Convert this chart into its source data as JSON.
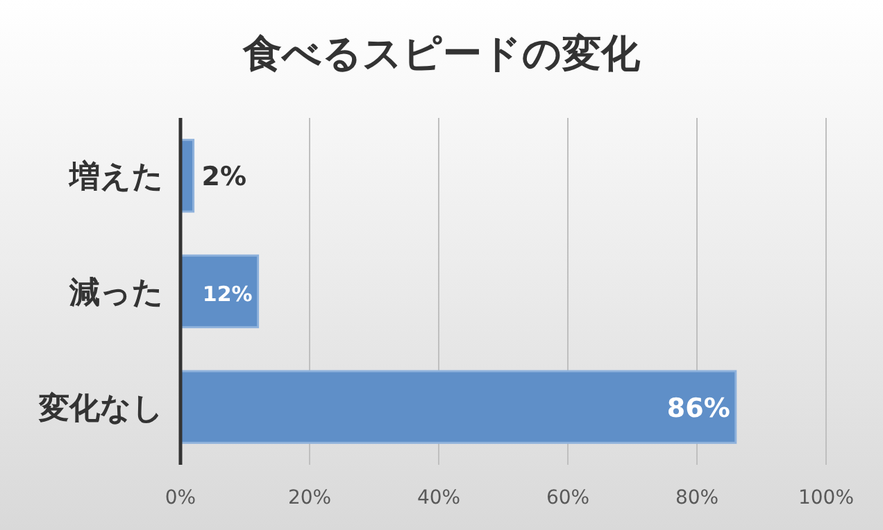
{
  "chart_data": {
    "type": "bar",
    "orientation": "horizontal",
    "title": "食べるスピードの変化",
    "categories": [
      "増えた",
      "減った",
      "変化なし"
    ],
    "values": [
      2,
      12,
      86
    ],
    "value_labels": [
      "2%",
      "12%",
      "86%"
    ],
    "color": "#5f8fc8",
    "xlim": [
      0,
      100
    ],
    "xticks": [
      {
        "value": 0,
        "label": "0%"
      },
      {
        "value": 20,
        "label": "20%"
      },
      {
        "value": 40,
        "label": "40%"
      },
      {
        "value": 60,
        "label": "60%"
      },
      {
        "value": 80,
        "label": "80%"
      },
      {
        "value": 100,
        "label": "100%"
      }
    ],
    "grid": "x"
  }
}
